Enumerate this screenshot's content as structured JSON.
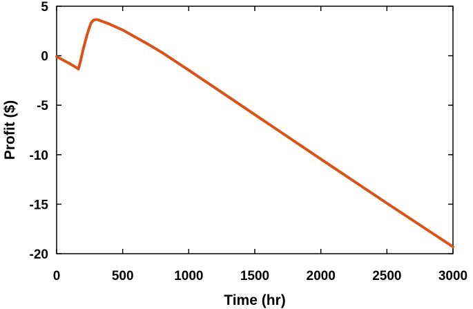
{
  "chart_data": {
    "type": "line",
    "title": "",
    "xlabel": "Time (hr)",
    "ylabel": "Profit ($)",
    "xlim": [
      0,
      3000
    ],
    "ylim": [
      -20,
      5
    ],
    "xticks": [
      0,
      500,
      1000,
      1500,
      2000,
      2500,
      3000
    ],
    "yticks": [
      5,
      0,
      -5,
      -10,
      -15,
      -20
    ],
    "xtick_labels": [
      "0",
      "500",
      "1000",
      "1500",
      "2000",
      "2500",
      "3000"
    ],
    "ytick_labels": [
      "5",
      "0",
      "-5",
      "-10",
      "-15",
      "-20"
    ],
    "grid": false,
    "series": [
      {
        "color": "#d95319",
        "x": [
          0,
          50,
          100,
          150,
          165,
          180,
          200,
          230,
          260,
          280,
          300,
          320,
          350,
          400,
          500,
          600,
          700,
          800,
          1000,
          1500,
          2000,
          2500,
          3000
        ],
        "y": [
          -0.1,
          -0.45,
          -0.8,
          -1.2,
          -1.35,
          -0.6,
          0.6,
          2.1,
          3.3,
          3.6,
          3.65,
          3.6,
          3.45,
          3.2,
          2.6,
          1.85,
          1.1,
          0.3,
          -1.45,
          -5.95,
          -10.45,
          -14.9,
          -19.3
        ]
      }
    ]
  }
}
